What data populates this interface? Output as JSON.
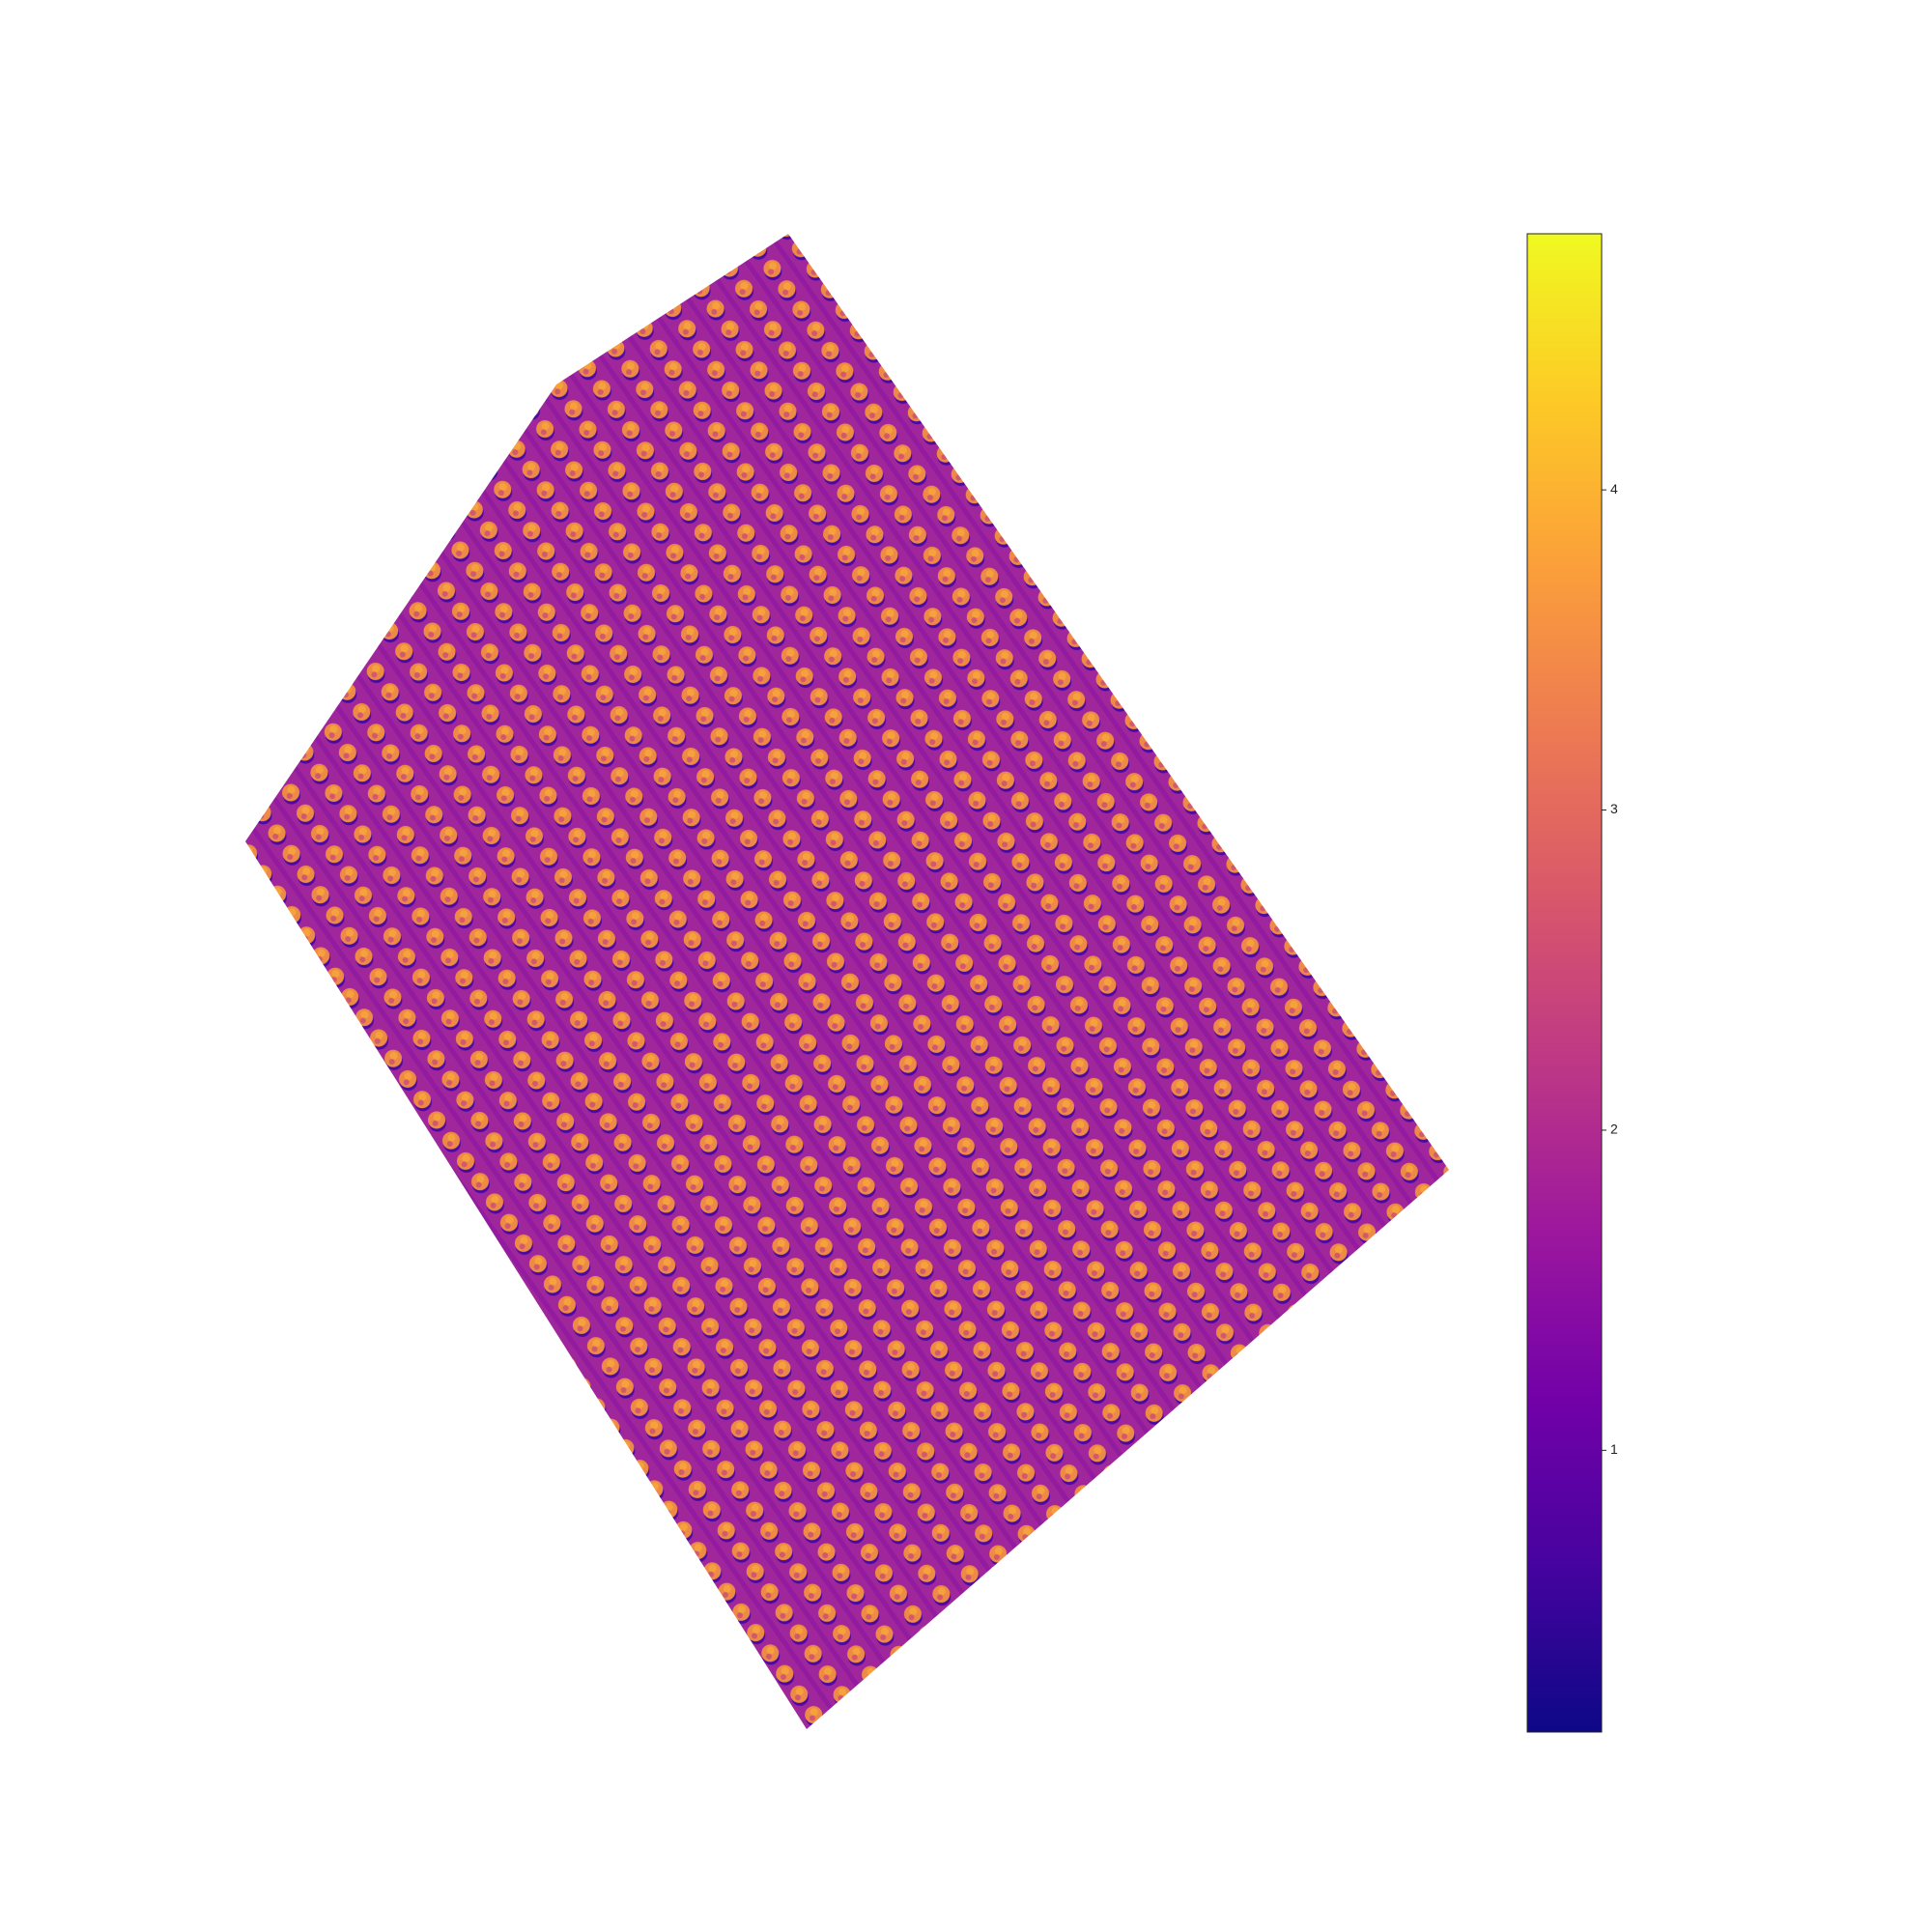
{
  "chart_data": {
    "type": "raster",
    "colormap": "plasma",
    "colorbar": {
      "lim": [
        0.12,
        4.8
      ],
      "ticks": [
        1,
        2,
        3,
        4
      ]
    }
  }
}
